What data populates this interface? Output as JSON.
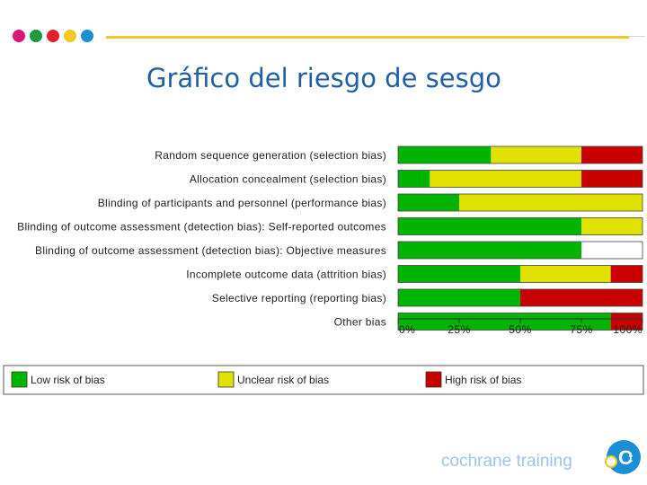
{
  "header": {
    "title": "Gráfico del riesgo de sesgo",
    "dot_colors": [
      "#e0137a",
      "#1c9a3c",
      "#e41e2d",
      "#f2c81c",
      "#1a8fd6"
    ],
    "line_color": "#f2c81c"
  },
  "footer": {
    "brand_text": "cochrane training",
    "logo_icon": "cochrane-ct-logo-icon"
  },
  "chart_data": {
    "type": "bar",
    "orientation": "horizontal-stacked-100",
    "categories": [
      "Random sequence generation (selection bias)",
      "Allocation concealment (selection bias)",
      "Blinding of participants and personnel (performance bias)",
      "Blinding of outcome assessment (detection bias): Self-reported outcomes",
      "Blinding of outcome assessment (detection bias): Objective measures",
      "Incomplete outcome data (attrition bias)",
      "Selective reporting (reporting bias)",
      "Other bias"
    ],
    "series": [
      {
        "name": "Low risk of bias",
        "color": "#00b400",
        "values": [
          38,
          13,
          25,
          75,
          75,
          50,
          50,
          87
        ]
      },
      {
        "name": "Unclear risk of bias",
        "color": "#e1e100",
        "values": [
          37,
          62,
          75,
          25,
          0,
          37,
          0,
          0
        ]
      },
      {
        "name": "High risk of bias",
        "color": "#c80000",
        "values": [
          25,
          25,
          0,
          0,
          0,
          13,
          50,
          13
        ]
      }
    ],
    "x_ticks": [
      "0%",
      "25%",
      "50%",
      "75%",
      "100%"
    ],
    "xlim": [
      0,
      100
    ],
    "legend_placement": "bottom",
    "grid": false
  }
}
